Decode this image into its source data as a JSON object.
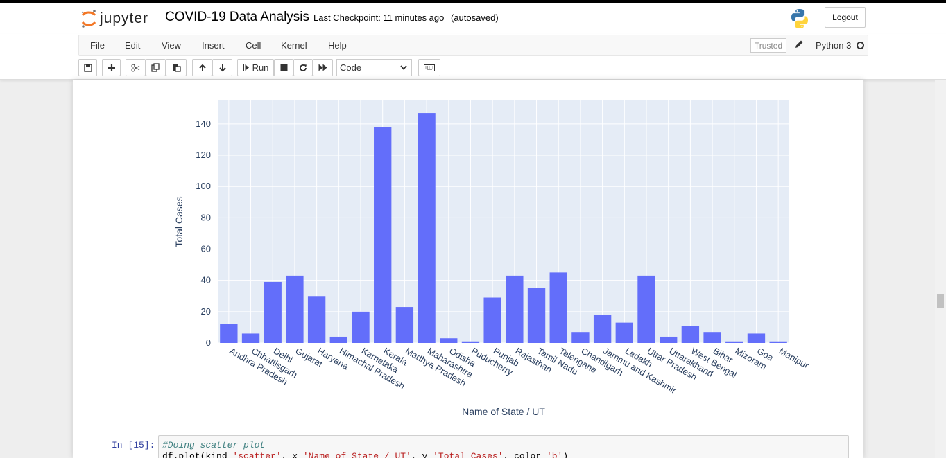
{
  "header": {
    "logo_text": "jupyter",
    "notebook_title": "COVID-19 Data Analysis",
    "checkpoint": "Last Checkpoint: 11 minutes ago",
    "autosave": "(autosaved)",
    "logout_label": "Logout"
  },
  "menu": {
    "items": [
      "File",
      "Edit",
      "View",
      "Insert",
      "Cell",
      "Kernel",
      "Help"
    ],
    "trusted_label": "Trusted",
    "kernel_name": "Python 3"
  },
  "toolbar": {
    "run_label": "Run",
    "cell_type": "Code",
    "icons": [
      "save-icon",
      "plus-icon",
      "cut-icon",
      "copy-icon",
      "paste-icon",
      "arrow-up-icon",
      "arrow-down-icon",
      "run-icon",
      "stop-icon",
      "restart-icon",
      "fast-forward-icon",
      "keyboard-icon"
    ]
  },
  "colors": {
    "bar": "#636efa",
    "plot_bg": "#e5ecf6",
    "prompt": "#303f9f"
  },
  "chart_data": {
    "type": "bar",
    "xlabel": "Name of State / UT",
    "ylabel": "Total Cases",
    "ylim": [
      0,
      155
    ],
    "yticks": [
      0,
      20,
      40,
      60,
      80,
      100,
      120,
      140
    ],
    "grid": true,
    "categories": [
      "Andhra Pradesh",
      "Chhattisgarh",
      "Delhi",
      "Gujarat",
      "Haryana",
      "Himachal Pradesh",
      "Karnataka",
      "Kerala",
      "Madhya Pradesh",
      "Maharashtra",
      "Odisha",
      "Puducherry",
      "Punjab",
      "Rajasthan",
      "Tamil Nadu",
      "Telengana",
      "Chandigarh",
      "Jammu and Kashmir",
      "Ladakh",
      "Uttar Pradesh",
      "Uttarakhand",
      "West Bengal",
      "Bihar",
      "Mizoram",
      "Goa",
      "Manipur"
    ],
    "values": [
      12,
      6,
      39,
      43,
      30,
      4,
      20,
      138,
      23,
      147,
      3,
      1,
      29,
      43,
      35,
      45,
      7,
      18,
      13,
      43,
      4,
      11,
      7,
      1,
      6,
      1
    ]
  },
  "next_cell": {
    "prompt": "In [15]:",
    "comment": "#Doing scatter plot",
    "code_line2_prefix": "df.plot(kind=",
    "code_line2_s1": "'scatter'",
    "code_line2_mid1": ", x=",
    "code_line2_s2": "'Name of State / UT'",
    "code_line2_mid2": ", y=",
    "code_line2_s3": "'Total Cases'",
    "code_line2_mid3": ", color=",
    "code_line2_s4": "'b'",
    "code_line2_end": ")"
  }
}
